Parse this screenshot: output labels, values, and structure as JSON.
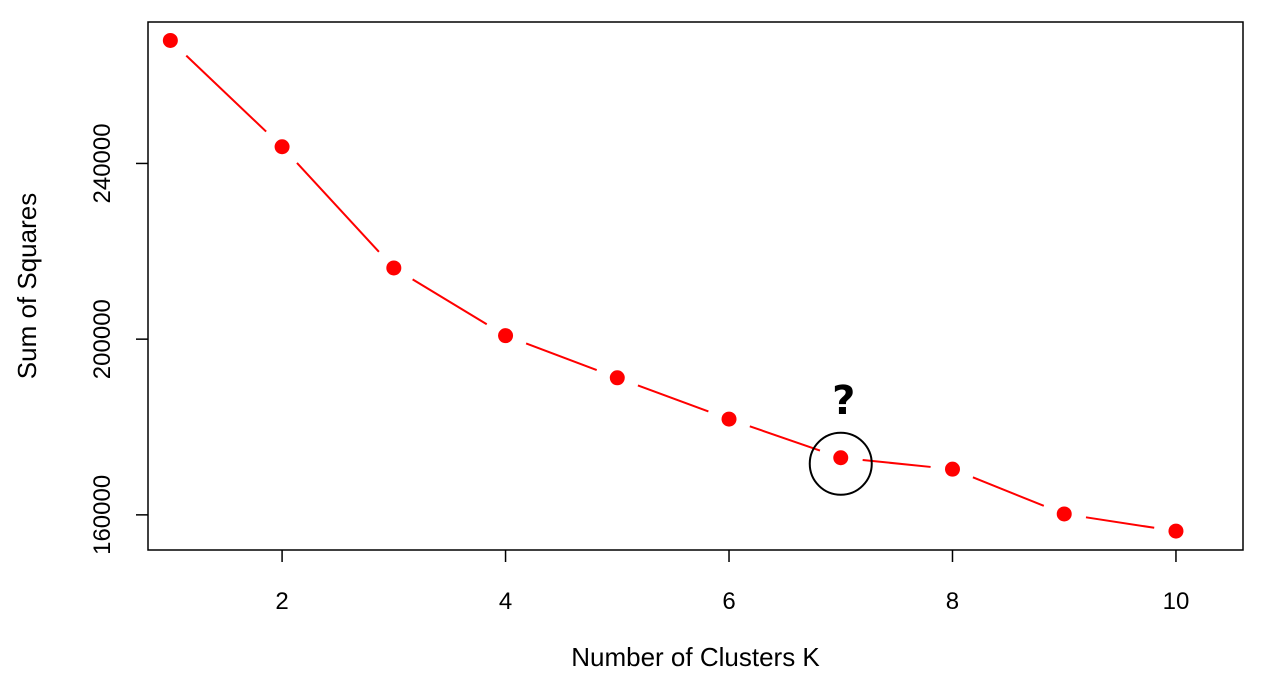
{
  "chart_data": {
    "type": "line",
    "markers": true,
    "line_style": "dashed",
    "title": "",
    "xlabel": "Number of Clusters K",
    "ylabel": "Sum of Squares",
    "x": [
      1,
      2,
      3,
      4,
      5,
      6,
      7,
      8,
      9,
      10
    ],
    "series": [
      {
        "values": [
          268000,
          243800,
          216200,
          200800,
          191200,
          181800,
          173000,
          170400,
          160200,
          156300
        ]
      }
    ],
    "xlim": [
      0.8,
      10.6
    ],
    "ylim": [
      152000,
      272200
    ],
    "xticks": [
      2,
      4,
      6,
      8,
      10
    ],
    "xtick_labels": [
      "2",
      "4",
      "6",
      "8",
      "10"
    ],
    "yticks": [
      160000,
      200000,
      240000
    ],
    "ytick_labels": [
      "160000",
      "200000",
      "240000"
    ],
    "grid": false,
    "legend": "none",
    "annotation": {
      "text": "?",
      "x": 7,
      "y": 173000,
      "shape": "circle"
    },
    "colors": {
      "series": "#ff0000",
      "axes": "#000000",
      "annotation": "#000000"
    }
  }
}
